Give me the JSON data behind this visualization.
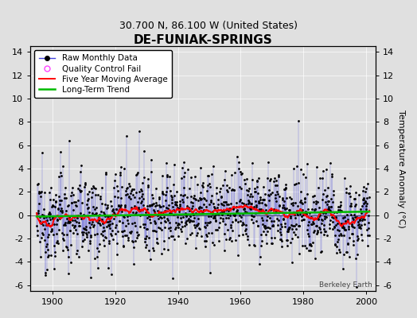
{
  "title": "DE-FUNIAK-SPRINGS",
  "subtitle": "30.700 N, 86.100 W (United States)",
  "ylabel": "Temperature Anomaly (°C)",
  "xlim": [
    1893,
    2003
  ],
  "ylim": [
    -6.5,
    14.5
  ],
  "yticks": [
    -6,
    -4,
    -2,
    0,
    2,
    4,
    6,
    8,
    10,
    12,
    14
  ],
  "xticks": [
    1900,
    1920,
    1940,
    1960,
    1980,
    2000
  ],
  "x_start": 1895,
  "x_end": 2001,
  "n_months": 1272,
  "seed": 12345,
  "background_color": "#e0e0e0",
  "plot_bg_color": "#e0e0e0",
  "raw_line_color": "#4444dd",
  "raw_line_alpha": 0.6,
  "raw_dot_color": "#000000",
  "moving_avg_color": "#ff0000",
  "trend_color": "#00bb00",
  "watermark": "Berkeley Earth",
  "title_fontsize": 11,
  "subtitle_fontsize": 9,
  "ylabel_fontsize": 8,
  "tick_fontsize": 8,
  "legend_fontsize": 7.5
}
